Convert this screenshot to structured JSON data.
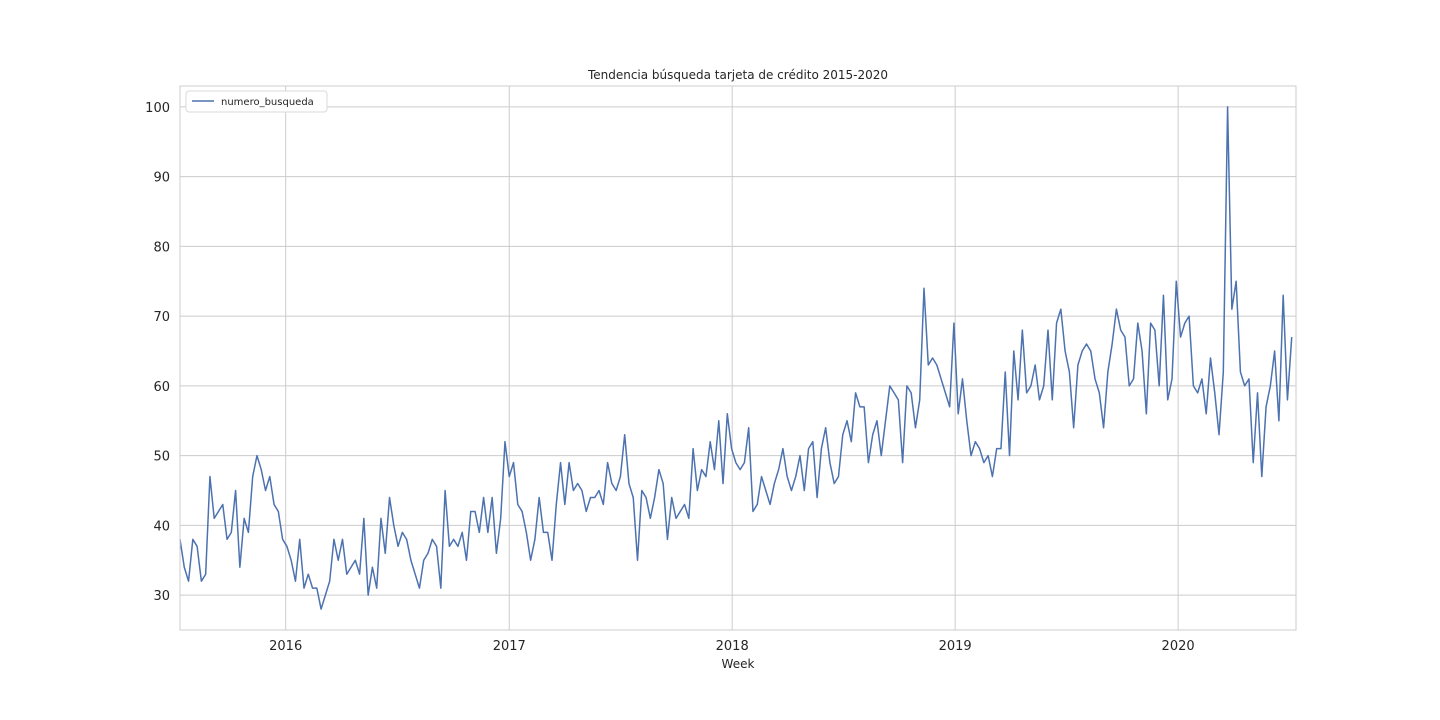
{
  "chart_data": {
    "type": "line",
    "title": "Tendencia búsqueda tarjeta de crédito 2015-2020",
    "xlabel": "Week",
    "ylabel": "",
    "ylim": [
      25,
      103
    ],
    "xlim": [
      "2015-07-12",
      "2020-07-12"
    ],
    "yticks": [
      30,
      40,
      50,
      60,
      70,
      80,
      90,
      100
    ],
    "xticks": [
      {
        "label": "2016",
        "date": "2016-01-01"
      },
      {
        "label": "2017",
        "date": "2017-01-01"
      },
      {
        "label": "2018",
        "date": "2018-01-01"
      },
      {
        "label": "2019",
        "date": "2019-01-01"
      },
      {
        "label": "2020",
        "date": "2020-01-01"
      }
    ],
    "grid": true,
    "legend_position": "top-left",
    "series": [
      {
        "name": "numero_busqueda",
        "color": "#4c72b0",
        "start_date": "2015-07-12",
        "frequency": "weekly",
        "values": [
          38,
          34,
          32,
          38,
          37,
          32,
          33,
          47,
          41,
          42,
          43,
          38,
          39,
          45,
          34,
          41,
          39,
          47,
          50,
          48,
          45,
          47,
          43,
          42,
          38,
          37,
          35,
          32,
          38,
          31,
          33,
          31,
          31,
          28,
          30,
          32,
          38,
          35,
          38,
          33,
          34,
          35,
          33,
          41,
          30,
          34,
          31,
          41,
          36,
          44,
          40,
          37,
          39,
          38,
          35,
          33,
          31,
          35,
          36,
          38,
          37,
          31,
          45,
          37,
          38,
          37,
          39,
          35,
          42,
          42,
          39,
          44,
          39,
          44,
          36,
          41,
          52,
          47,
          49,
          43,
          42,
          39,
          35,
          38,
          44,
          39,
          39,
          35,
          43,
          49,
          43,
          49,
          45,
          46,
          45,
          42,
          44,
          44,
          45,
          43,
          49,
          46,
          45,
          47,
          53,
          46,
          44,
          35,
          45,
          44,
          41,
          44,
          48,
          46,
          38,
          44,
          41,
          42,
          43,
          41,
          51,
          45,
          48,
          47,
          52,
          48,
          55,
          46,
          56,
          51,
          49,
          48,
          49,
          54,
          42,
          43,
          47,
          45,
          43,
          46,
          48,
          51,
          47,
          45,
          47,
          50,
          45,
          51,
          52,
          44,
          51,
          54,
          49,
          46,
          47,
          53,
          55,
          52,
          59,
          57,
          57,
          49,
          53,
          55,
          50,
          55,
          60,
          59,
          58,
          49,
          60,
          59,
          54,
          58,
          74,
          63,
          64,
          63,
          61,
          59,
          57,
          69,
          56,
          61,
          55,
          50,
          52,
          51,
          49,
          50,
          47,
          51,
          51,
          62,
          50,
          65,
          58,
          68,
          59,
          60,
          63,
          58,
          60,
          68,
          58,
          69,
          71,
          65,
          62,
          54,
          63,
          65,
          66,
          65,
          61,
          59,
          54,
          62,
          66,
          71,
          68,
          67,
          60,
          61,
          69,
          65,
          56,
          69,
          68,
          60,
          73,
          58,
          61,
          75,
          67,
          69,
          70,
          60,
          59,
          61,
          56,
          64,
          59,
          53,
          62,
          100,
          71,
          75,
          62,
          60,
          61,
          49,
          59,
          47,
          57,
          60,
          65,
          55,
          73,
          58,
          67
        ]
      }
    ]
  }
}
